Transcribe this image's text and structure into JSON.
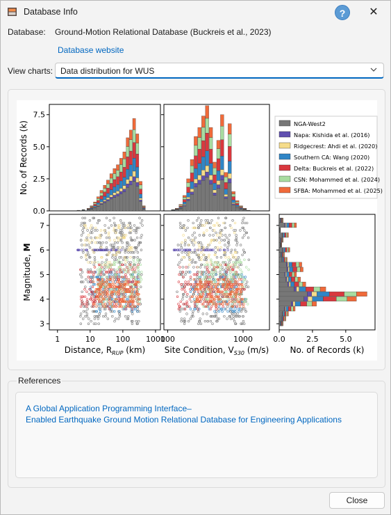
{
  "window": {
    "title": "Database Info",
    "help_glyph": "?",
    "close_glyph": "✕"
  },
  "database": {
    "label": "Database:",
    "name": "Ground-Motion Relational Database (Buckreis et al., 2023)",
    "website_link": "Database website"
  },
  "view_charts": {
    "label": "View charts:",
    "selected": "Data distribution for WUS"
  },
  "chart_data": {
    "type": "histogram-grid",
    "legend": [
      {
        "name": "NGA-West2",
        "color": "#777777"
      },
      {
        "name": "Napa: Kishida et al. (2016)",
        "color": "#6050b0"
      },
      {
        "name": "Ridgecrest: Ahdi et al. (2020)",
        "color": "#f5dc8a"
      },
      {
        "name": "Southern CA: Wang (2020)",
        "color": "#2f85c6"
      },
      {
        "name": "Delta: Buckreis et al. (2022)",
        "color": "#d9383e"
      },
      {
        "name": "CSN: Mohammed et al. (2024)",
        "color": "#a8dca0"
      },
      {
        "name": "SFBA: Mohammed et al. (2025)",
        "color": "#f06a3a"
      }
    ],
    "top_left": {
      "ylabel": "No. of Records (k)",
      "yticks": [
        "0.0",
        "2.5",
        "5.0",
        "7.5"
      ],
      "ylim": [
        0,
        8.3
      ],
      "bins_log_rrup": [
        0.6,
        0.75,
        0.9,
        1.0,
        1.1,
        1.2,
        1.3,
        1.4,
        1.5,
        1.6,
        1.7,
        1.8,
        1.9,
        2.0,
        2.1,
        2.2,
        2.3,
        2.4,
        2.5,
        2.6
      ],
      "totals": [
        0.05,
        0.1,
        0.2,
        0.4,
        0.7,
        1.1,
        1.6,
        2.0,
        2.4,
        2.9,
        3.3,
        3.6,
        4.1,
        4.6,
        5.7,
        6.3,
        7.2,
        6.0,
        2.3,
        0.4
      ]
    },
    "top_mid": {
      "bins_log_vs30": [
        2.05,
        2.1,
        2.15,
        2.2,
        2.25,
        2.3,
        2.35,
        2.4,
        2.45,
        2.5,
        2.55,
        2.6,
        2.65,
        2.7,
        2.75,
        2.8,
        2.85,
        2.9,
        2.95,
        3.0,
        3.05
      ],
      "totals": [
        0.1,
        0.2,
        0.5,
        1.2,
        2.5,
        4.0,
        5.8,
        6.5,
        7.4,
        8.2,
        6.5,
        3.8,
        5.5,
        7.5,
        3.0,
        6.8,
        1.5,
        0.8,
        0.4,
        0.2,
        0.05
      ]
    },
    "bottom_left": {
      "xlabel": "Distance, R",
      "xlabel_sub": "RUP",
      "xlabel_unit": " (km)",
      "ylabel": "Magnitude, ",
      "ylabel_bold": "M",
      "xticks": [
        "1",
        "10",
        "100",
        "1000"
      ],
      "yticks": [
        "3",
        "4",
        "5",
        "6",
        "7"
      ]
    },
    "bottom_mid": {
      "xlabel": "Site Condition, V",
      "xlabel_sub": "S30",
      "xlabel_unit": " (m/s)",
      "xticks": [
        "100",
        "1000"
      ]
    },
    "bottom_right": {
      "xlabel": "No. of Records (k)",
      "xticks": [
        "0.0",
        "2.5",
        "5.0"
      ],
      "mags": [
        3.0,
        3.2,
        3.4,
        3.6,
        3.8,
        4.0,
        4.2,
        4.4,
        4.6,
        4.8,
        5.0,
        5.2,
        5.4,
        5.6,
        5.8,
        6.0,
        6.2,
        6.4,
        6.6,
        6.8,
        7.0,
        7.2
      ],
      "totals": [
        0.3,
        0.5,
        0.7,
        1.2,
        2.8,
        5.8,
        6.6,
        3.5,
        2.0,
        1.6,
        1.3,
        1.8,
        1.7,
        0.6,
        0.4,
        0.8,
        0.2,
        0.3,
        0.7,
        0.1,
        1.3,
        0.3
      ]
    }
  },
  "references": {
    "title": "References",
    "link_line1": "A Global Application Programming Interface–",
    "link_line2": "Enabled Earthquake Ground Motion Relational Database for Engineering Applications"
  },
  "footer": {
    "close_label": "Close"
  }
}
